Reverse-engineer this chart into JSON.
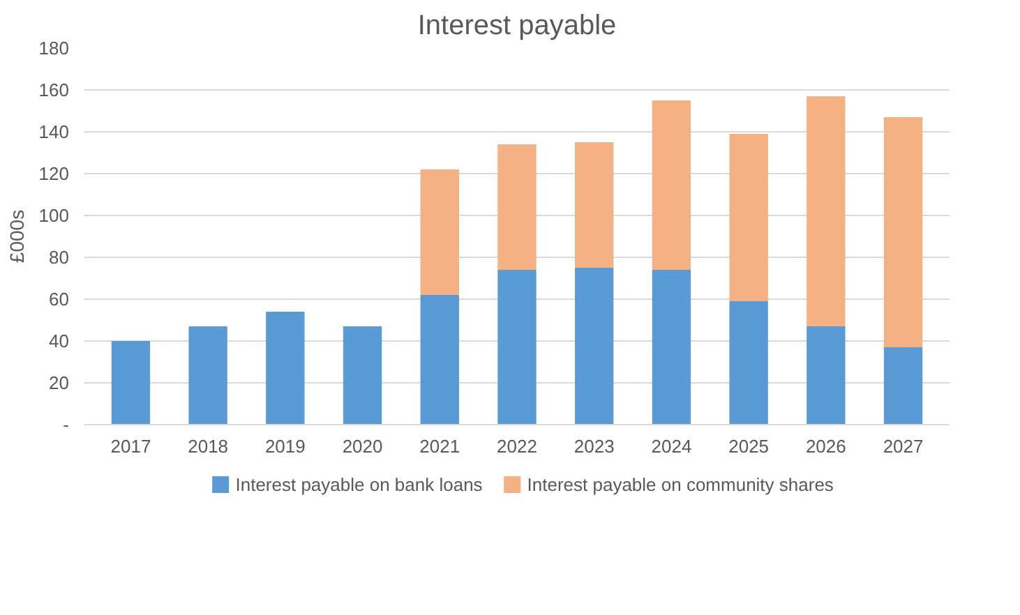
{
  "chart_data": {
    "type": "bar",
    "title": "Interest payable",
    "ylabel": "£000s",
    "categories": [
      "2017",
      "2018",
      "2019",
      "2020",
      "2021",
      "2022",
      "2023",
      "2024",
      "2025",
      "2026",
      "2027"
    ],
    "stacked": true,
    "series": [
      {
        "name": "Interest payable on bank loans",
        "color": "#5b9bd5",
        "values": [
          40,
          47,
          54,
          47,
          62,
          74,
          75,
          74,
          59,
          47,
          37
        ]
      },
      {
        "name": "Interest payable on community shares",
        "color": "#f4b183",
        "values": [
          null,
          null,
          null,
          null,
          60,
          60,
          60,
          81,
          80,
          110,
          110
        ]
      }
    ],
    "ylim": [
      0,
      180
    ],
    "yticks": [
      {
        "value": 0,
        "label": "-"
      },
      20,
      40,
      60,
      80,
      100,
      120,
      140,
      160,
      180
    ],
    "grid": "y",
    "legend": "bottom"
  }
}
